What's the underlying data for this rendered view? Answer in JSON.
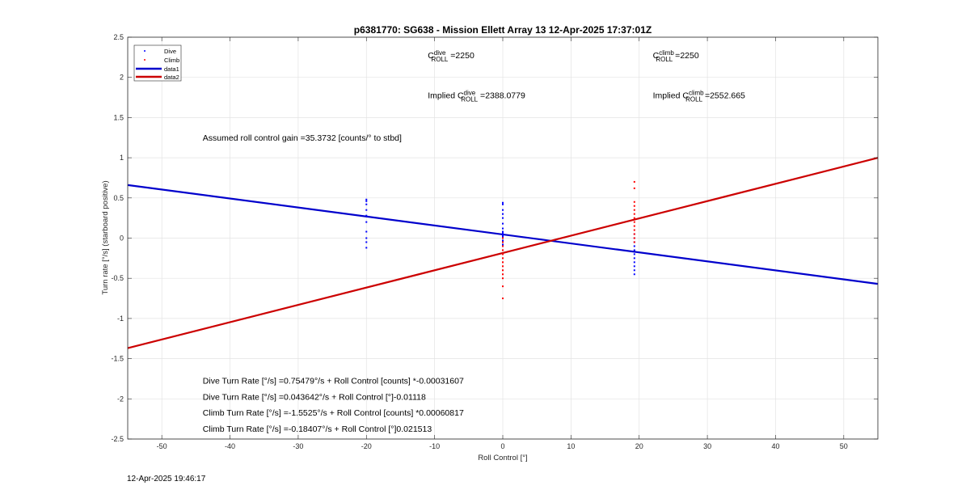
{
  "chart_data": {
    "type": "scatter",
    "title": "p6381770: SG638 - Mission Ellett Array 13 12-Apr-2025 17:37:01Z",
    "xlabel": "Roll Control [°]",
    "ylabel": "Turn rate [°/s] (starboard positive)",
    "xlim": [
      -55,
      55
    ],
    "ylim": [
      -2.5,
      2.5
    ],
    "x_ticks": [
      -50,
      -40,
      -30,
      -20,
      -10,
      0,
      10,
      20,
      30,
      40,
      50
    ],
    "y_ticks": [
      -2.5,
      -2,
      -1.5,
      -1,
      -0.5,
      0,
      0.5,
      1,
      1.5,
      2,
      2.5
    ],
    "grid": true,
    "legend_position": "top-left",
    "legend": [
      "Dive",
      "Climb",
      "data1",
      "data2"
    ],
    "series": [
      {
        "name": "Dive",
        "kind": "points",
        "color": "#0000ff",
        "groups": [
          {
            "x": -20,
            "y": [
              -0.12,
              -0.05,
              0.0,
              0.08,
              0.2,
              0.28,
              0.35,
              0.42,
              0.46,
              0.48
            ]
          },
          {
            "x": 0,
            "y": [
              -0.08,
              -0.03,
              0.0,
              0.02,
              0.04,
              0.06,
              0.08,
              0.12,
              0.18,
              0.25,
              0.3,
              0.35,
              0.42,
              0.44
            ]
          },
          {
            "x": 19.3,
            "y": [
              -0.45,
              -0.4,
              -0.35,
              -0.3,
              -0.25,
              -0.2,
              -0.15,
              -0.1,
              -0.05,
              0.0,
              0.05
            ]
          }
        ]
      },
      {
        "name": "Climb",
        "kind": "points",
        "color": "#ff0000",
        "groups": [
          {
            "x": 0,
            "y": [
              -0.75,
              -0.6,
              -0.5,
              -0.45,
              -0.4,
              -0.35,
              -0.3,
              -0.25,
              -0.2,
              -0.15,
              -0.1,
              -0.05,
              0.0
            ]
          },
          {
            "x": 19.3,
            "y": [
              -0.05,
              0.0,
              0.05,
              0.1,
              0.15,
              0.2,
              0.25,
              0.3,
              0.35,
              0.4,
              0.45,
              0.62,
              0.7
            ]
          }
        ]
      },
      {
        "name": "data1",
        "kind": "line",
        "color": "#0000cc",
        "x": [
          -55,
          55
        ],
        "y": [
          0.6604,
          -0.5694
        ]
      },
      {
        "name": "data2",
        "kind": "line",
        "color": "#cc0000",
        "x": [
          -55,
          55
        ],
        "y": [
          -1.3689,
          0.9986
        ]
      }
    ],
    "annotations": [
      {
        "id": "c_dive",
        "prefix": "C",
        "sup": "dive",
        "sub": "ROLL",
        "suffix": " =2250",
        "x": -11,
        "y": 2.24
      },
      {
        "id": "c_climb",
        "prefix": "C",
        "sup": "climb",
        "sub": "ROLL",
        "suffix": " =2250",
        "x": 22,
        "y": 2.24
      },
      {
        "id": "implied_dive",
        "prefix": "Implied C",
        "sup": "dive",
        "sub": "ROLL",
        "suffix": " =2388.0779",
        "x": -11,
        "y": 1.74
      },
      {
        "id": "implied_climb",
        "prefix": "Implied C",
        "sup": "climb",
        "sub": "ROLL",
        "suffix": " =2552.665",
        "x": 22,
        "y": 1.74
      }
    ],
    "notes": [
      {
        "id": "gain",
        "text": "Assumed roll control gain =35.3732 [counts/° to stbd]",
        "x": -44,
        "y": 1.21
      },
      {
        "id": "dive_counts",
        "text": "Dive Turn Rate [°/s] =0.75479°/s + Roll Control [counts] *-0.00031607",
        "x": -44,
        "y": -1.81
      },
      {
        "id": "dive_deg",
        "text": "Dive Turn Rate [°/s] =0.043642°/s + Roll Control [°]-0.01118",
        "x": -44,
        "y": -2.01
      },
      {
        "id": "climb_counts",
        "text": "Climb Turn Rate [°/s] =-1.5525°/s + Roll Control [counts] *0.00060817",
        "x": -44,
        "y": -2.21
      },
      {
        "id": "climb_deg",
        "text": "Climb Turn Rate [°/s] =-0.18407°/s + Roll Control [°]0.021513",
        "x": -44,
        "y": -2.41
      }
    ]
  },
  "footer": {
    "timestamp": "12-Apr-2025 19:46:17"
  }
}
